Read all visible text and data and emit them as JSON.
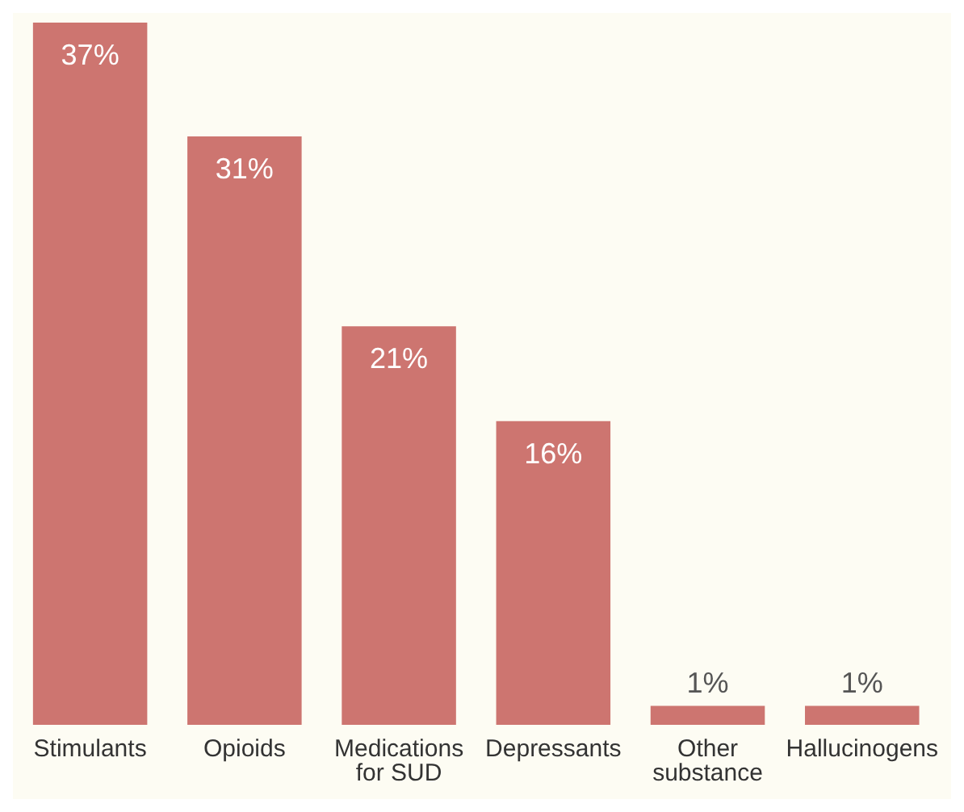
{
  "chart_data": {
    "type": "bar",
    "categories": [
      "Stimulants",
      "Opioids",
      "Medications for SUD",
      "Depressants",
      "Other substance",
      "Hallucinogens"
    ],
    "values": [
      37,
      31,
      21,
      16,
      1,
      1
    ],
    "value_labels": [
      "37%",
      "31%",
      "21%",
      "16%",
      "1%",
      "1%"
    ],
    "color": "#cd7570",
    "grid": false,
    "legend": false
  }
}
